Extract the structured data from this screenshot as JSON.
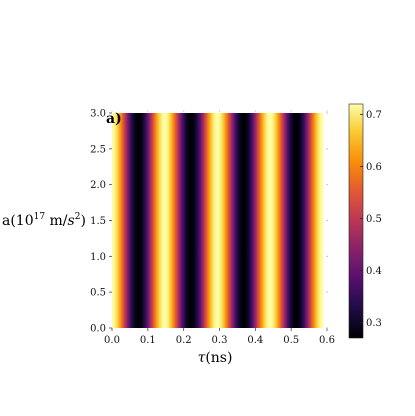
{
  "chart_data": {
    "type": "heatmap",
    "panel_label": "a)",
    "xlabel": "τ(ns)",
    "ylabel": "a(10^17 m/s^2)",
    "xlim": [
      0.0,
      0.6
    ],
    "ylim": [
      0.0,
      3.0
    ],
    "x_ticks": [
      "0.0",
      "0.1",
      "0.2",
      "0.3",
      "0.4",
      "0.5",
      "0.6"
    ],
    "y_ticks": [
      "0.0",
      "0.5",
      "1.0",
      "1.5",
      "2.0",
      "2.5",
      "3.0"
    ],
    "x_tick_values": [
      0.0,
      0.1,
      0.2,
      0.3,
      0.4,
      0.5,
      0.6
    ],
    "y_tick_values": [
      0.0,
      0.5,
      1.0,
      1.5,
      2.0,
      2.5,
      3.0
    ],
    "colorbar": {
      "ticks": [
        "0.3",
        "0.4",
        "0.5",
        "0.6",
        "0.7"
      ],
      "tick_values": [
        0.3,
        0.4,
        0.5,
        0.6,
        0.7
      ],
      "range": [
        0.27,
        0.72
      ],
      "colormap": "inferno"
    },
    "x_range_data": [
      0.0,
      0.59
    ],
    "peaks_tau": [
      0.0,
      0.147,
      0.295,
      0.442,
      0.59
    ],
    "troughs_tau": [
      0.074,
      0.221,
      0.368,
      0.516
    ],
    "value_min": 0.27,
    "value_max": 0.72,
    "note_pattern": "value depends only on τ; stripes constant along a"
  }
}
